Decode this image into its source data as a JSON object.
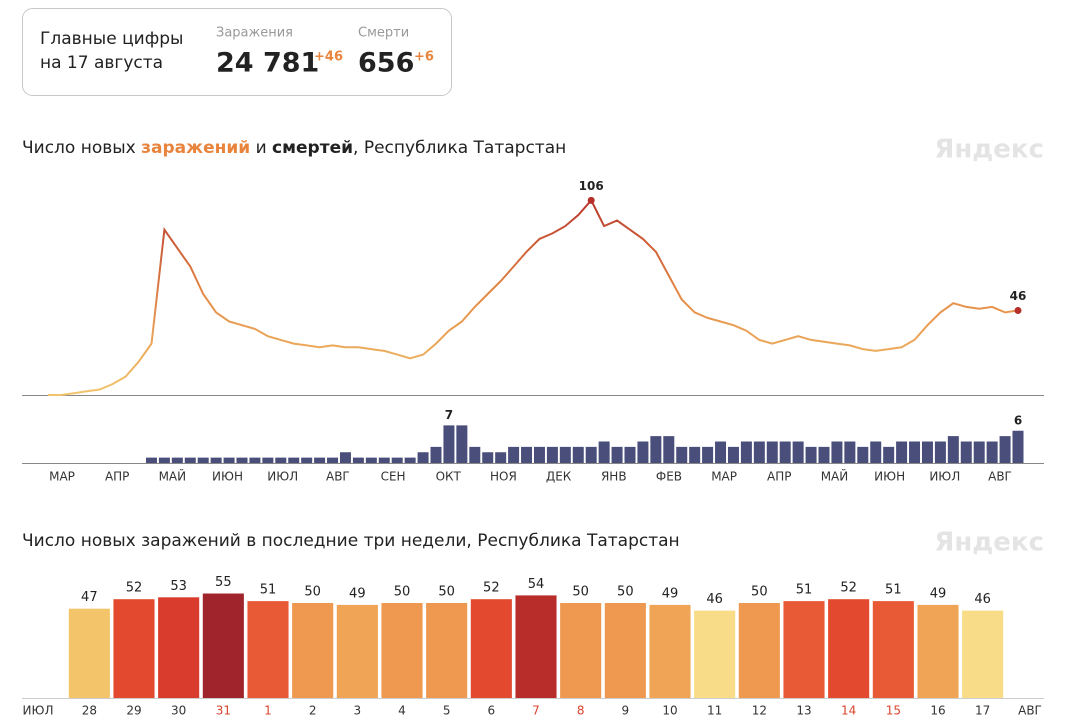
{
  "summary": {
    "title_line1": "Главные цифры",
    "title_line2": "на 17 августа",
    "infections": {
      "label": "Заражения",
      "total": "24 781",
      "delta": "+46"
    },
    "deaths": {
      "label": "Смерти",
      "total": "656",
      "delta": "+6"
    }
  },
  "chart_data": [
    {
      "type": "line",
      "title_parts": [
        "Число новых",
        "и",
        ", Республика Татарстан"
      ],
      "watermark": "Яндекс",
      "month_labels": [
        "МАР",
        "АПР",
        "МАЙ",
        "ИЮН",
        "ИЮЛ",
        "АВГ",
        "СЕН",
        "ОКТ",
        "НОЯ",
        "ДЕК",
        "ЯНВ",
        "ФЕВ",
        "МАР",
        "АПР",
        "МАЙ",
        "ИЮН",
        "ИЮЛ",
        "АВГ"
      ],
      "ylim": [
        0,
        110
      ],
      "y2lim": [
        0,
        8
      ],
      "series": [
        {
          "name": "заражений",
          "colors": [
            "#f2c46e",
            "#e48a45",
            "#b5302a"
          ],
          "values": [
            0,
            0,
            1,
            2,
            3,
            6,
            10,
            18,
            28,
            90,
            80,
            70,
            55,
            45,
            40,
            38,
            36,
            32,
            30,
            28,
            27,
            26,
            27,
            26,
            26,
            25,
            24,
            22,
            20,
            22,
            28,
            35,
            40,
            48,
            55,
            62,
            70,
            78,
            85,
            88,
            92,
            98,
            106,
            92,
            95,
            90,
            85,
            78,
            65,
            52,
            45,
            42,
            40,
            38,
            35,
            30,
            28,
            30,
            32,
            30,
            29,
            28,
            27,
            25,
            24,
            25,
            26,
            30,
            38,
            45,
            50,
            48,
            47,
            48,
            45,
            46
          ]
        },
        {
          "name": "смертей",
          "axis": "y2",
          "color": "#4a4e7a",
          "values": [
            0,
            0,
            0,
            0,
            0,
            0,
            0,
            0,
            1,
            1,
            1,
            1,
            1,
            1,
            1,
            1,
            1,
            1,
            1,
            1,
            1,
            1,
            1,
            2,
            1,
            1,
            1,
            1,
            1,
            2,
            3,
            7,
            7,
            3,
            2,
            2,
            3,
            3,
            3,
            3,
            3,
            3,
            3,
            4,
            3,
            3,
            4,
            5,
            5,
            3,
            3,
            3,
            4,
            3,
            4,
            4,
            4,
            4,
            4,
            3,
            3,
            4,
            4,
            3,
            4,
            3,
            4,
            4,
            4,
            4,
            5,
            4,
            4,
            4,
            5,
            6
          ]
        }
      ]
    },
    {
      "type": "bar",
      "title": "Число новых заражений в последние три недели, Республика Татарстан",
      "watermark": "Яндекс",
      "month_labels": [
        "ИЮЛ",
        "АВГ"
      ],
      "categories": [
        "28",
        "29",
        "30",
        "31",
        "1",
        "2",
        "3",
        "4",
        "5",
        "6",
        "7",
        "8",
        "9",
        "10",
        "11",
        "12",
        "13",
        "14",
        "15",
        "16",
        "17"
      ],
      "values": [
        47,
        52,
        53,
        55,
        51,
        50,
        49,
        50,
        50,
        52,
        54,
        50,
        50,
        49,
        46,
        50,
        51,
        52,
        51,
        49,
        46
      ],
      "colors": [
        "#f3c46a",
        "#e2492e",
        "#d93b2c",
        "#a0242c",
        "#e85a36",
        "#ef9850",
        "#f0a455",
        "#ef9850",
        "#ef9850",
        "#e2492e",
        "#b82d2a",
        "#ef9850",
        "#ef9850",
        "#f0a455",
        "#f8dc88",
        "#ef9850",
        "#e85a36",
        "#e2492e",
        "#e85a36",
        "#f0a455",
        "#f8dc88"
      ],
      "category_colors": [
        "#333",
        "#333",
        "#333",
        "#d9452c",
        "#d9452c",
        "#333",
        "#333",
        "#333",
        "#333",
        "#333",
        "#d9452c",
        "#d9452c",
        "#333",
        "#333",
        "#333",
        "#333",
        "#333",
        "#d9452c",
        "#d9452c",
        "#333",
        "#333"
      ],
      "ylim": [
        0,
        60
      ]
    }
  ]
}
